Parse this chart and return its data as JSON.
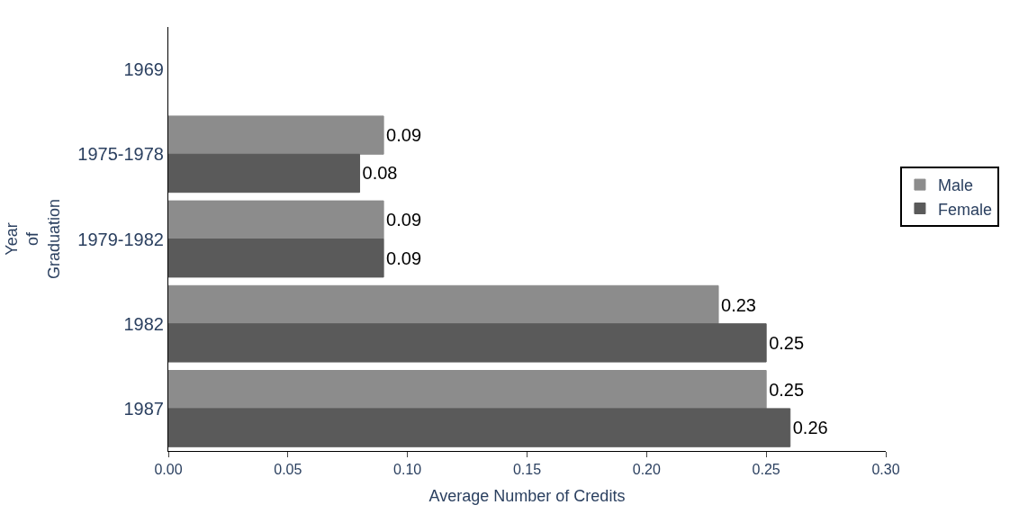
{
  "chart_data": {
    "type": "bar",
    "orientation": "horizontal",
    "xlabel": "Average Number of Credits",
    "ylabel": "Year of Graduation",
    "categories": [
      "1969",
      "1975-1978",
      "1979-1982",
      "1982",
      "1987"
    ],
    "series": [
      {
        "name": "Male",
        "color": "#8c8c8c",
        "values": [
          null,
          0.09,
          0.09,
          0.23,
          0.25
        ]
      },
      {
        "name": "Female",
        "color": "#5a5a5a",
        "values": [
          null,
          0.08,
          0.09,
          0.25,
          0.26
        ]
      }
    ],
    "xlim": [
      0,
      0.3
    ],
    "xticks": [
      {
        "value": 0,
        "label": "0.00"
      },
      0.05,
      {
        "value": 0.1,
        "label": "0.10"
      },
      0.15,
      {
        "value": 0.2,
        "label": "0.20"
      },
      0.25,
      {
        "value": 0.3,
        "label": "0.30"
      }
    ],
    "data_labels": true,
    "legend": "right"
  }
}
